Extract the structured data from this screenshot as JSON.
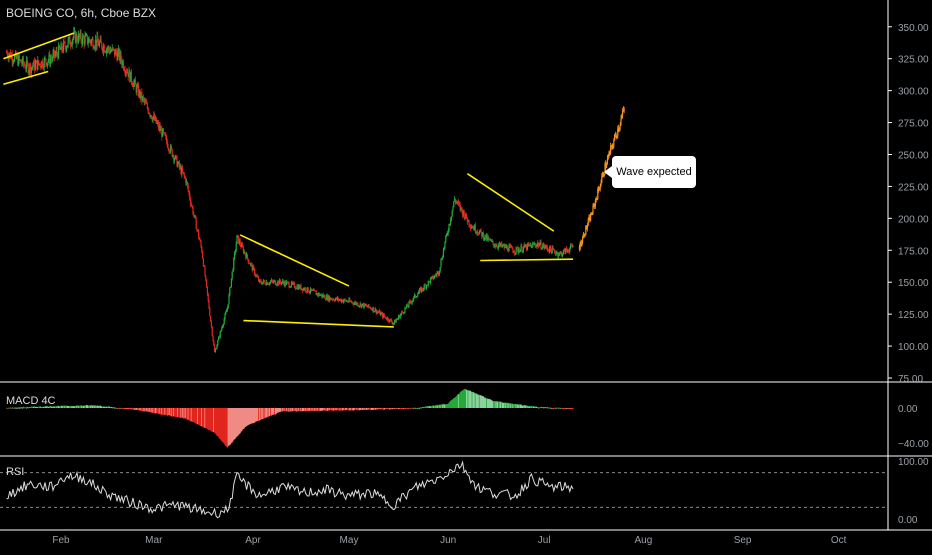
{
  "title": "BOEING CO, 6h, Cboe BZX",
  "callout": "Wave expected",
  "colors": {
    "up": "#22ab38",
    "down": "#e0261d",
    "proj": "#f7931a",
    "trend": "#ffee00",
    "axis": "#9aa0a6"
  },
  "chart_data": [
    {
      "type": "candlestick",
      "title": "BOEING CO, 6h, Cboe BZX",
      "ylim": [
        75,
        360
      ],
      "yticks": [
        75,
        100,
        125,
        150,
        175,
        200,
        225,
        250,
        275,
        300,
        325,
        350
      ],
      "ytick_labels": [
        "75.00",
        "100.00",
        "125.00",
        "150.00",
        "175.00",
        "200.00",
        "225.00",
        "250.00",
        "275.00",
        "300.00",
        "325.00",
        "350.00"
      ],
      "xticks": [
        "Feb",
        "Mar",
        "Apr",
        "May",
        "Jun",
        "Jul",
        "Aug",
        "Sep",
        "Oct"
      ],
      "price_path": [
        [
          "Jan 15",
          330
        ],
        [
          "Jan 22",
          318
        ],
        [
          "Jan 29",
          325
        ],
        [
          "Feb 5",
          342
        ],
        [
          "Feb 12",
          338
        ],
        [
          "Feb 19",
          328
        ],
        [
          "Feb 26",
          295
        ],
        [
          "Mar 4",
          265
        ],
        [
          "Mar 11",
          230
        ],
        [
          "Mar 16",
          175
        ],
        [
          "Mar 20",
          95
        ],
        [
          "Mar 24",
          130
        ],
        [
          "Mar 27",
          185
        ],
        [
          "Apr 3",
          150
        ],
        [
          "Apr 10",
          150
        ],
        [
          "Apr 17",
          145
        ],
        [
          "Apr 24",
          138
        ],
        [
          "May 1",
          135
        ],
        [
          "May 8",
          130
        ],
        [
          "May 15",
          118
        ],
        [
          "May 22",
          140
        ],
        [
          "May 29",
          158
        ],
        [
          "Jun 3",
          215
        ],
        [
          "Jun 8",
          195
        ],
        [
          "Jun 15",
          180
        ],
        [
          "Jun 22",
          175
        ],
        [
          "Jun 29",
          180
        ],
        [
          "Jul 6",
          172
        ],
        [
          "Jul 10",
          178
        ]
      ],
      "projection_path": [
        [
          "Jul 12",
          178
        ],
        [
          "Jul 16",
          205
        ],
        [
          "Jul 20",
          240
        ],
        [
          "Jul 24",
          270
        ],
        [
          "Jul 26",
          285
        ]
      ],
      "trendlines": [
        {
          "from": [
            "Jan 14",
            325
          ],
          "to": [
            "Feb 5",
            345
          ]
        },
        {
          "from": [
            "Jan 14",
            305
          ],
          "to": [
            "Jan 28",
            315
          ]
        },
        {
          "from": [
            "Mar 28",
            187
          ],
          "to": [
            "May 1",
            147
          ]
        },
        {
          "from": [
            "Mar 29",
            120
          ],
          "to": [
            "May 15",
            115
          ]
        },
        {
          "from": [
            "Jun 7",
            235
          ],
          "to": [
            "Jul 4",
            190
          ]
        },
        {
          "from": [
            "Jun 11",
            167
          ],
          "to": [
            "Jul 10",
            168
          ]
        }
      ]
    },
    {
      "type": "histogram",
      "title": "MACD 4C",
      "ylim": [
        -50,
        25
      ],
      "yticks": [
        0,
        -40
      ],
      "ytick_labels": [
        "0.00",
        "−40.00"
      ],
      "path": [
        [
          "Jan 15",
          0
        ],
        [
          "Jan 29",
          2
        ],
        [
          "Feb 12",
          3
        ],
        [
          "Feb 26",
          -3
        ],
        [
          "Mar 11",
          -12
        ],
        [
          "Mar 20",
          -28
        ],
        [
          "Mar 24",
          -45
        ],
        [
          "Mar 30",
          -20
        ],
        [
          "Apr 10",
          -4
        ],
        [
          "Apr 24",
          -3
        ],
        [
          "May 8",
          -2
        ],
        [
          "May 22",
          0
        ],
        [
          "Jun 1",
          5
        ],
        [
          "Jun 6",
          22
        ],
        [
          "Jun 15",
          8
        ],
        [
          "Jun 29",
          1
        ],
        [
          "Jul 10",
          -1
        ]
      ]
    },
    {
      "type": "line",
      "title": "RSI",
      "ylim": [
        0,
        100
      ],
      "levels": [
        20,
        80
      ],
      "yticks": [
        100,
        0
      ],
      "ytick_labels": [
        "100.00",
        "0.00"
      ],
      "path": [
        [
          "Jan 15",
          40
        ],
        [
          "Jan 22",
          60
        ],
        [
          "Jan 29",
          55
        ],
        [
          "Feb 3",
          75
        ],
        [
          "Feb 8",
          70
        ],
        [
          "Feb 15",
          45
        ],
        [
          "Feb 22",
          30
        ],
        [
          "Mar 1",
          18
        ],
        [
          "Mar 8",
          25
        ],
        [
          "Mar 15",
          15
        ],
        [
          "Mar 20",
          10
        ],
        [
          "Mar 24",
          15
        ],
        [
          "Mar 27",
          72
        ],
        [
          "Apr 3",
          40
        ],
        [
          "Apr 10",
          55
        ],
        [
          "Apr 17",
          45
        ],
        [
          "Apr 24",
          50
        ],
        [
          "May 1",
          40
        ],
        [
          "May 8",
          45
        ],
        [
          "May 15",
          25
        ],
        [
          "May 22",
          55
        ],
        [
          "May 29",
          70
        ],
        [
          "Jun 5",
          95
        ],
        [
          "Jun 10",
          55
        ],
        [
          "Jun 15",
          45
        ],
        [
          "Jun 22",
          40
        ],
        [
          "Jun 27",
          70
        ],
        [
          "Jul 3",
          55
        ],
        [
          "Jul 10",
          55
        ]
      ]
    }
  ]
}
